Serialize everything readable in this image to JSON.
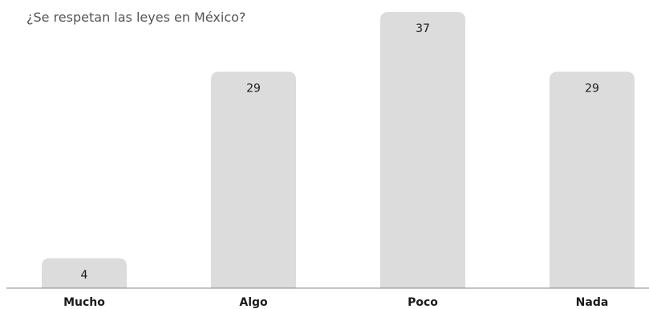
{
  "chart_data": {
    "type": "bar",
    "title": "¿Se respetan las leyes en México?",
    "categories": [
      "Mucho",
      "Algo",
      "Poco",
      "Nada"
    ],
    "values": [
      4,
      29,
      37,
      29
    ],
    "xlabel": "",
    "ylabel": "",
    "ylim": [
      0,
      37
    ],
    "grid": false,
    "legend": "none",
    "colors": {
      "bar": "#dcdcdc",
      "axis": "#888888",
      "label": "#1a1a1a",
      "title": "#555555"
    }
  }
}
